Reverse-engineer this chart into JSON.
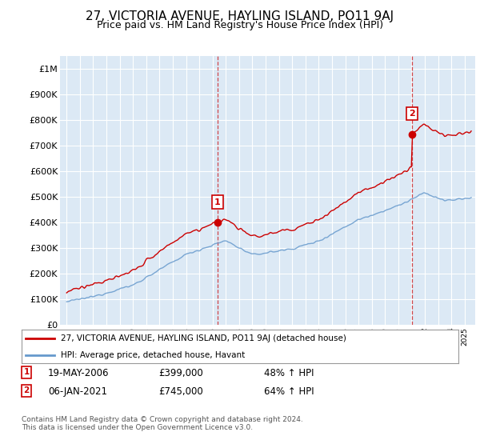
{
  "title": "27, VICTORIA AVENUE, HAYLING ISLAND, PO11 9AJ",
  "subtitle": "Price paid vs. HM Land Registry's House Price Index (HPI)",
  "ylabel_ticks": [
    "£0",
    "£100K",
    "£200K",
    "£300K",
    "£400K",
    "£500K",
    "£600K",
    "£700K",
    "£800K",
    "£900K",
    "£1M"
  ],
  "ytick_values": [
    0,
    100000,
    200000,
    300000,
    400000,
    500000,
    600000,
    700000,
    800000,
    900000,
    1000000
  ],
  "ylim": [
    0,
    1050000
  ],
  "xlim_start": 1994.5,
  "xlim_end": 2025.8,
  "marker1_x": 2006.38,
  "marker1_y": 399000,
  "marker2_x": 2021.02,
  "marker2_y": 745000,
  "vline1_x": 2006.38,
  "vline2_x": 2021.02,
  "legend_line1": "27, VICTORIA AVENUE, HAYLING ISLAND, PO11 9AJ (detached house)",
  "legend_line2": "HPI: Average price, detached house, Havant",
  "table_row1": [
    "1",
    "19-MAY-2006",
    "£399,000",
    "48% ↑ HPI"
  ],
  "table_row2": [
    "2",
    "06-JAN-2021",
    "£745,000",
    "64% ↑ HPI"
  ],
  "footer": "Contains HM Land Registry data © Crown copyright and database right 2024.\nThis data is licensed under the Open Government Licence v3.0.",
  "red_color": "#cc0000",
  "blue_color": "#6699cc",
  "bg_plot_color": "#dce9f5",
  "background_color": "#ffffff",
  "grid_color": "#ffffff",
  "title_fontsize": 11,
  "subtitle_fontsize": 9
}
